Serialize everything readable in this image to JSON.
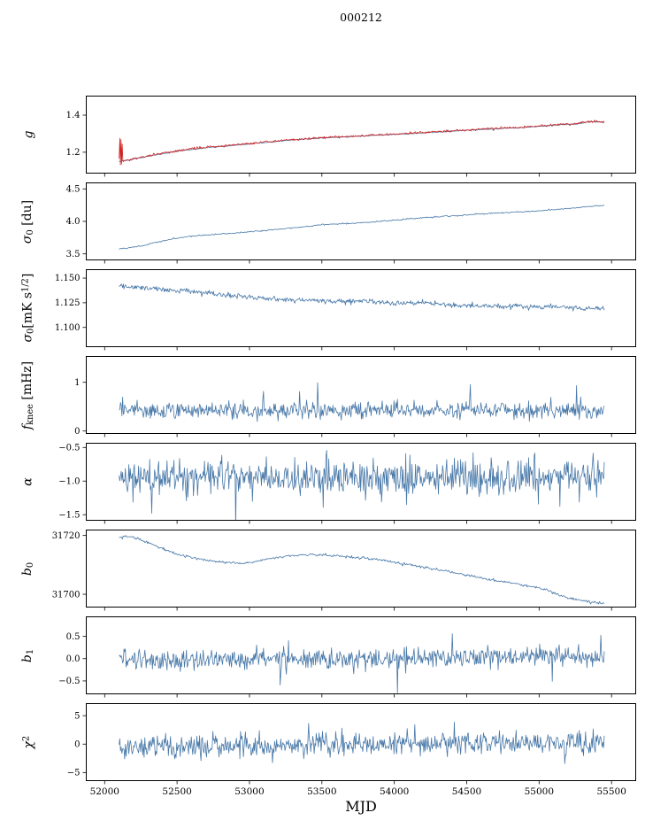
{
  "chart_data": {
    "type": "line",
    "title": "000212",
    "xlabel": "MJD",
    "grid": false,
    "legend": "none",
    "xlim": [
      51870,
      55670
    ],
    "x_data_range": [
      52100,
      55450
    ],
    "xticks": [
      {
        "v": 52000,
        "label": "52000"
      },
      {
        "v": 52500,
        "label": "52500"
      },
      {
        "v": 53000,
        "label": "53000"
      },
      {
        "v": 53500,
        "label": "53500"
      },
      {
        "v": 54000,
        "label": "54000"
      },
      {
        "v": 54500,
        "label": "54500"
      },
      {
        "v": 55000,
        "label": "55000"
      },
      {
        "v": 55500,
        "label": "55500"
      }
    ],
    "colors": {
      "line_blue": "#4878a8",
      "line_red": "#d02323",
      "axis": "#000000",
      "background": "#ffffff"
    },
    "panels": [
      {
        "id": "g",
        "ylabel_segments": [
          {
            "text": "g",
            "kind": "italic"
          }
        ],
        "ylim": [
          1.085,
          1.505
        ],
        "yticks": [
          {
            "v": 1.2,
            "label": "1.2"
          },
          {
            "v": 1.4,
            "label": "1.4"
          }
        ],
        "series": [
          {
            "name": "gain-smooth",
            "color": "#4878a8",
            "noise": 0.0012,
            "seed": 101,
            "npoints": 500,
            "trend": [
              [
                52100,
                1.15
              ],
              [
                52200,
                1.163
              ],
              [
                52350,
                1.185
              ],
              [
                52500,
                1.205
              ],
              [
                52700,
                1.224
              ],
              [
                52900,
                1.238
              ],
              [
                53100,
                1.252
              ],
              [
                53300,
                1.266
              ],
              [
                53500,
                1.277
              ],
              [
                53700,
                1.284
              ],
              [
                53900,
                1.292
              ],
              [
                54100,
                1.3
              ],
              [
                54300,
                1.309
              ],
              [
                54500,
                1.318
              ],
              [
                54700,
                1.326
              ],
              [
                54900,
                1.334
              ],
              [
                55050,
                1.342
              ],
              [
                55150,
                1.349
              ],
              [
                55250,
                1.352
              ],
              [
                55330,
                1.362
              ],
              [
                55390,
                1.365
              ],
              [
                55450,
                1.36
              ]
            ]
          },
          {
            "name": "gain-noisy",
            "color": "#d02323",
            "noise": 0.003,
            "seed": 102,
            "npoints": 700,
            "xstart": 52130,
            "prefix": [
              [
                52100,
                1.165
              ],
              [
                52105,
                1.275
              ],
              [
                52109,
                1.132
              ],
              [
                52113,
                1.268
              ],
              [
                52117,
                1.136
              ],
              [
                52121,
                1.245
              ],
              [
                52126,
                1.152
              ]
            ],
            "trend": [
              [
                52130,
                1.152
              ],
              [
                52200,
                1.165
              ],
              [
                52350,
                1.188
              ],
              [
                52500,
                1.208
              ],
              [
                52700,
                1.227
              ],
              [
                52900,
                1.24
              ],
              [
                53100,
                1.254
              ],
              [
                53300,
                1.268
              ],
              [
                53500,
                1.279
              ],
              [
                53700,
                1.286
              ],
              [
                53900,
                1.294
              ],
              [
                54100,
                1.302
              ],
              [
                54300,
                1.311
              ],
              [
                54500,
                1.32
              ],
              [
                54700,
                1.328
              ],
              [
                54900,
                1.336
              ],
              [
                55050,
                1.344
              ],
              [
                55150,
                1.351
              ],
              [
                55250,
                1.354
              ],
              [
                55330,
                1.364
              ],
              [
                55390,
                1.367
              ],
              [
                55450,
                1.362
              ]
            ]
          }
        ]
      },
      {
        "id": "sigma0-du",
        "ylabel_segments": [
          {
            "text": "σ",
            "kind": "italic"
          },
          {
            "text": "0",
            "kind": "sub"
          },
          {
            "text": " [du]",
            "kind": "normal"
          }
        ],
        "ylim": [
          3.4,
          4.6
        ],
        "yticks": [
          {
            "v": 3.5,
            "label": "3.5"
          },
          {
            "v": 4.0,
            "label": "4.0"
          },
          {
            "v": 4.5,
            "label": "4.5"
          }
        ],
        "series": [
          {
            "name": "sigma0-du",
            "color": "#4878a8",
            "noise": 0.005,
            "seed": 201,
            "npoints": 500,
            "trend": [
              [
                52100,
                3.575
              ],
              [
                52250,
                3.62
              ],
              [
                52400,
                3.7
              ],
              [
                52550,
                3.76
              ],
              [
                52700,
                3.79
              ],
              [
                52900,
                3.82
              ],
              [
                53100,
                3.86
              ],
              [
                53300,
                3.9
              ],
              [
                53500,
                3.95
              ],
              [
                53700,
                3.97
              ],
              [
                53900,
                4.0
              ],
              [
                54100,
                4.04
              ],
              [
                54300,
                4.07
              ],
              [
                54500,
                4.1
              ],
              [
                54700,
                4.13
              ],
              [
                54900,
                4.15
              ],
              [
                55100,
                4.18
              ],
              [
                55250,
                4.21
              ],
              [
                55450,
                4.25
              ]
            ]
          }
        ]
      },
      {
        "id": "sigma0-mk",
        "ylabel_segments": [
          {
            "text": "σ",
            "kind": "italic"
          },
          {
            "text": "0",
            "kind": "sub"
          },
          {
            "text": "[mK s",
            "kind": "normal"
          },
          {
            "text": "1/2",
            "kind": "sup"
          },
          {
            "text": "]",
            "kind": "normal"
          }
        ],
        "ylim": [
          1.08,
          1.159
        ],
        "yticks": [
          {
            "v": 1.1,
            "label": "1.100"
          },
          {
            "v": 1.125,
            "label": "1.125"
          },
          {
            "v": 1.15,
            "label": "1.150"
          }
        ],
        "series": [
          {
            "name": "sigma0-mk",
            "color": "#4878a8",
            "noise": 0.0013,
            "seed": 301,
            "npoints": 700,
            "trend": [
              [
                52100,
                1.1415
              ],
              [
                52250,
                1.1405
              ],
              [
                52400,
                1.1385
              ],
              [
                52600,
                1.1365
              ],
              [
                52800,
                1.1335
              ],
              [
                53000,
                1.1305
              ],
              [
                53200,
                1.1285
              ],
              [
                53400,
                1.1275
              ],
              [
                53600,
                1.1265
              ],
              [
                53800,
                1.1272
              ],
              [
                54000,
                1.1245
              ],
              [
                54200,
                1.1252
              ],
              [
                54400,
                1.1225
              ],
              [
                54600,
                1.1215
              ],
              [
                54800,
                1.1212
              ],
              [
                55000,
                1.1212
              ],
              [
                55200,
                1.1208
              ],
              [
                55350,
                1.1192
              ],
              [
                55450,
                1.1195
              ]
            ]
          }
        ]
      },
      {
        "id": "fknee",
        "ylabel_segments": [
          {
            "text": "f",
            "kind": "italic"
          },
          {
            "text": "knee",
            "kind": "sub"
          },
          {
            "text": " [mHz]",
            "kind": "normal"
          }
        ],
        "ylim": [
          -0.06,
          1.54
        ],
        "yticks": [
          {
            "v": 0,
            "label": "0"
          },
          {
            "v": 1,
            "label": "1"
          }
        ],
        "series": [
          {
            "name": "fknee",
            "color": "#4878a8",
            "noise": 0.085,
            "seed": 401,
            "npoints": 700,
            "tail": {
              "p": 0.03,
              "amp": 0.28,
              "bias": 1
            },
            "trend": [
              [
                52100,
                0.42
              ],
              [
                55450,
                0.42
              ]
            ]
          }
        ]
      },
      {
        "id": "alpha",
        "ylabel_segments": [
          {
            "text": "α",
            "kind": "italic"
          }
        ],
        "ylim": [
          -1.59,
          -0.43
        ],
        "yticks": [
          {
            "v": -0.5,
            "label": "−0.5"
          },
          {
            "v": -1.0,
            "label": "−1.0"
          },
          {
            "v": -1.5,
            "label": "−1.5"
          }
        ],
        "series": [
          {
            "name": "alpha",
            "color": "#4878a8",
            "noise": 0.135,
            "seed": 501,
            "npoints": 700,
            "tail": {
              "p": 0.02,
              "amp": 0.3
            },
            "trend": [
              [
                52100,
                -0.95
              ],
              [
                55450,
                -0.95
              ]
            ]
          }
        ]
      },
      {
        "id": "b0",
        "ylabel_segments": [
          {
            "text": "b",
            "kind": "italic"
          },
          {
            "text": "0",
            "kind": "sub"
          }
        ],
        "ylim": [
          31695.5,
          31722
        ],
        "yticks": [
          {
            "v": 31700,
            "label": "31700"
          },
          {
            "v": 31720,
            "label": "31720"
          }
        ],
        "series": [
          {
            "name": "b0",
            "color": "#4878a8",
            "noise": 0.22,
            "seed": 601,
            "npoints": 600,
            "trend": [
              [
                52100,
                31719.3
              ],
              [
                52180,
                31719.8
              ],
              [
                52250,
                31718.5
              ],
              [
                52350,
                31716.5
              ],
              [
                52450,
                31714.5
              ],
              [
                52550,
                31713.0
              ],
              [
                52650,
                31712.0
              ],
              [
                52750,
                31711.3
              ],
              [
                52850,
                31710.8
              ],
              [
                52950,
                31710.4
              ],
              [
                53050,
                31711.2
              ],
              [
                53150,
                31712.2
              ],
              [
                53250,
                31713.0
              ],
              [
                53350,
                31713.4
              ],
              [
                53450,
                31713.5
              ],
              [
                53550,
                31713.2
              ],
              [
                53650,
                31713.0
              ],
              [
                53750,
                31712.5
              ],
              [
                53850,
                31712.0
              ],
              [
                53950,
                31711.3
              ],
              [
                54050,
                31710.5
              ],
              [
                54150,
                31709.7
              ],
              [
                54250,
                31708.8
              ],
              [
                54350,
                31708.0
              ],
              [
                54450,
                31707.0
              ],
              [
                54550,
                31706.0
              ],
              [
                54650,
                31705.0
              ],
              [
                54750,
                31704.3
              ],
              [
                54850,
                31703.5
              ],
              [
                54950,
                31702.5
              ],
              [
                55050,
                31701.5
              ],
              [
                55100,
                31700.5
              ],
              [
                55150,
                31699.5
              ],
              [
                55200,
                31698.7
              ],
              [
                55250,
                31698.3
              ],
              [
                55300,
                31697.8
              ],
              [
                55350,
                31697.5
              ],
              [
                55450,
                31696.8
              ]
            ]
          }
        ]
      },
      {
        "id": "b1",
        "ylabel_segments": [
          {
            "text": "b",
            "kind": "italic"
          },
          {
            "text": "1",
            "kind": "sub"
          }
        ],
        "ylim": [
          -0.8,
          0.95
        ],
        "yticks": [
          {
            "v": -0.5,
            "label": "−0.5"
          },
          {
            "v": 0.0,
            "label": "0.0"
          },
          {
            "v": 0.5,
            "label": "0.5"
          }
        ],
        "series": [
          {
            "name": "b1",
            "color": "#4878a8",
            "noise": 0.11,
            "seed": 701,
            "npoints": 700,
            "tail": {
              "p": 0.015,
              "amp": 0.42
            },
            "trend": [
              [
                52100,
                0.0
              ],
              [
                52300,
                -0.06
              ],
              [
                52600,
                -0.06
              ],
              [
                52900,
                0.0
              ],
              [
                54900,
                0.02
              ],
              [
                55100,
                0.05
              ],
              [
                55450,
                0.05
              ]
            ]
          }
        ]
      },
      {
        "id": "chi2",
        "ylabel_segments": [
          {
            "text": "χ",
            "kind": "italic"
          },
          {
            "text": "2",
            "kind": "sup"
          }
        ],
        "ylim": [
          -6.5,
          7.2
        ],
        "yticks": [
          {
            "v": -5,
            "label": "−5"
          },
          {
            "v": 0,
            "label": "0"
          },
          {
            "v": 5,
            "label": "5"
          }
        ],
        "series": [
          {
            "name": "chi2",
            "color": "#4878a8",
            "noise": 1.05,
            "seed": 801,
            "npoints": 700,
            "tail": {
              "p": 0.01,
              "amp": 1.4
            },
            "trend": [
              [
                52100,
                -0.6
              ],
              [
                53000,
                -0.3
              ],
              [
                54000,
                0.0
              ],
              [
                55450,
                0.3
              ]
            ]
          }
        ]
      }
    ]
  }
}
